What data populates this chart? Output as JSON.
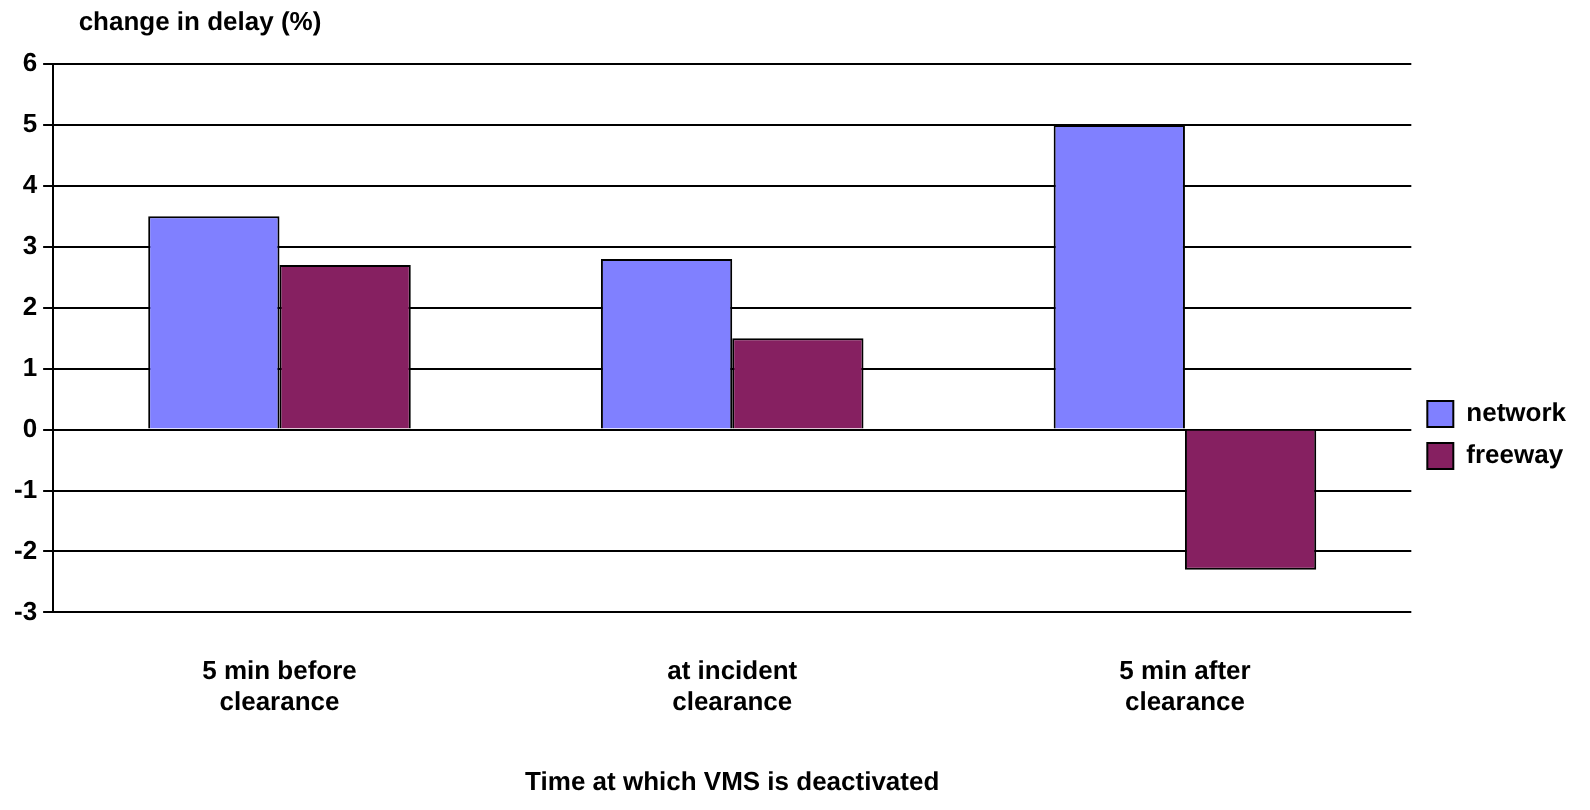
{
  "chart_data": {
    "type": "bar",
    "ylabel": "change in delay (%)",
    "xlabel": "Time at which VMS is deactivated",
    "categories": [
      "5 min before clearance",
      "at incident clearance",
      "5 min after clearance"
    ],
    "series": [
      {
        "name": "network",
        "color": "#8080ff",
        "values": [
          3.5,
          2.8,
          5.0
        ]
      },
      {
        "name": "freeway",
        "color": "#862061",
        "values": [
          2.7,
          1.5,
          -2.3
        ]
      }
    ],
    "ylim": [
      -3,
      6
    ],
    "yticks": [
      -3,
      -2,
      -1,
      0,
      1,
      2,
      3,
      4,
      5,
      6
    ],
    "grid": "y",
    "legend": "right"
  }
}
